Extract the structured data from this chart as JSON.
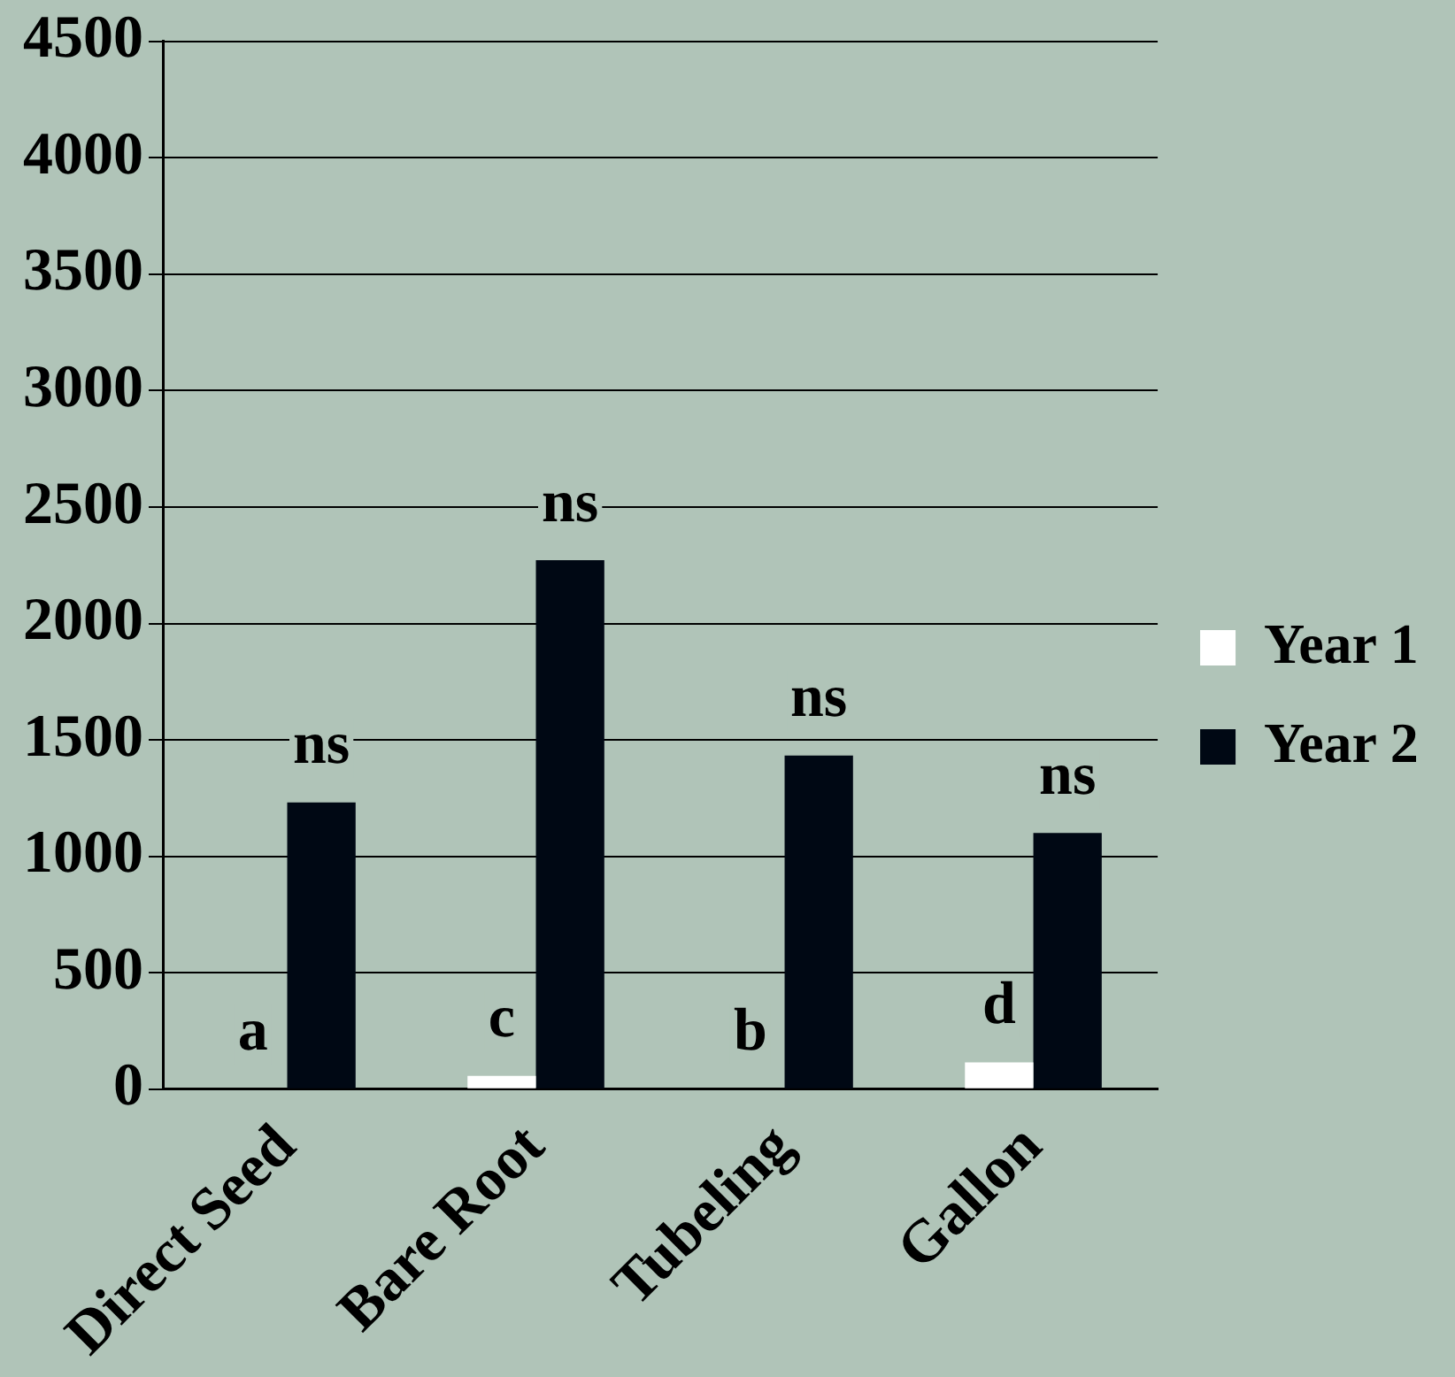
{
  "chart_data": {
    "type": "bar",
    "categories": [
      "Direct Seed",
      "Bare Root",
      "Tubeling",
      "Gallon"
    ],
    "series": [
      {
        "name": "Year 1",
        "color": "#ffffff",
        "values": [
          0,
          57,
          0,
          115
        ],
        "value_labels": [
          "a",
          "c",
          "b",
          "d"
        ]
      },
      {
        "name": "Year 2",
        "color": "#000814",
        "values": [
          1232,
          2272,
          1433,
          1101
        ],
        "value_labels": [
          "ns",
          "ns",
          "ns",
          "ns"
        ]
      }
    ],
    "ylim": [
      0,
      4500
    ],
    "yticks": [
      0,
      500,
      1000,
      1500,
      2000,
      2500,
      3000,
      3500,
      4000,
      4500
    ],
    "grid": "y",
    "legend": "right"
  }
}
